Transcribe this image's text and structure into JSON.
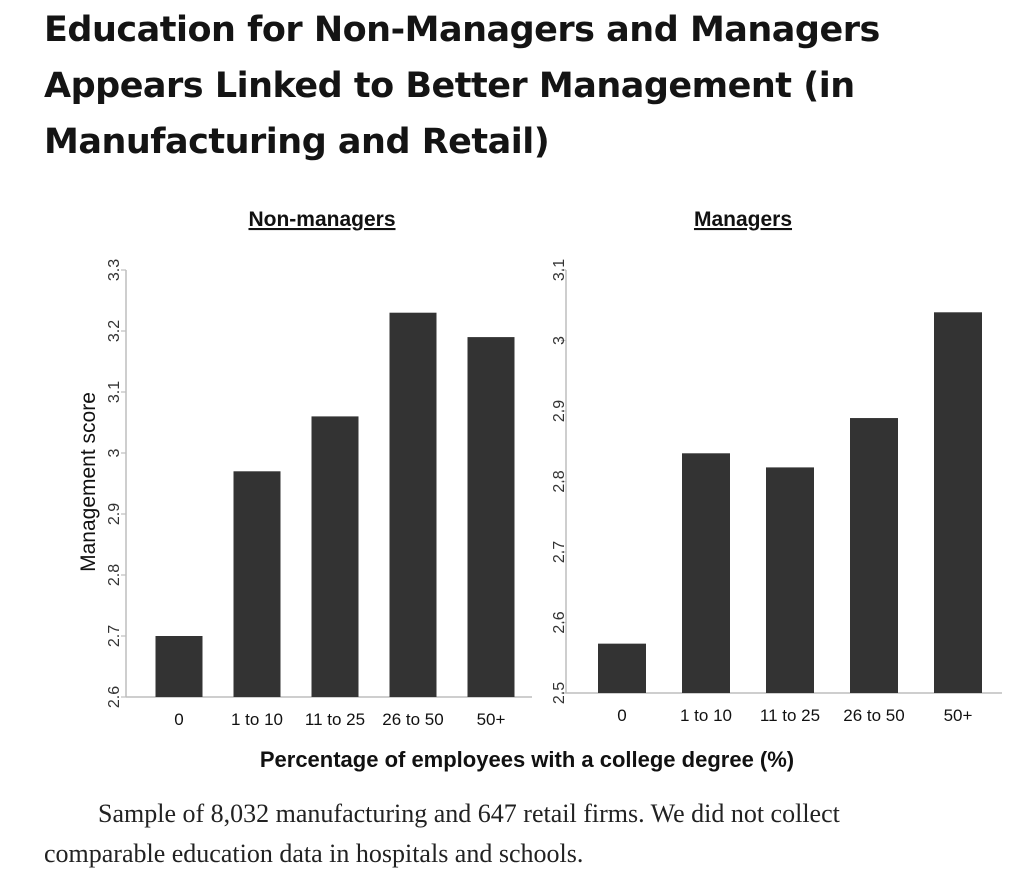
{
  "headline": {
    "line1": "Education for Non-Managers and Managers",
    "line2": "Appears Linked to Better Management (in",
    "line3": "Manufacturing and Retail)"
  },
  "chart_data": [
    {
      "type": "bar",
      "title": "Non-managers",
      "ylabel": "Management score",
      "xlabel": "Percentage of employees with a college degree (%)",
      "categories": [
        "0",
        "1 to 10",
        "11 to 25",
        "26 to 50",
        "50+"
      ],
      "values": [
        2.7,
        2.97,
        3.06,
        3.23,
        3.19
      ],
      "ylim": [
        2.6,
        3.3
      ],
      "yticks": [
        "2.6",
        "2.7",
        "2.8",
        "2.9",
        "3",
        "3.1",
        "3.2",
        "3.3"
      ],
      "bar_color": "#333333",
      "grid": false
    },
    {
      "type": "bar",
      "title": "Managers",
      "ylabel": "",
      "xlabel": "Percentage of employees with a college degree (%)",
      "categories": [
        "0",
        "1 to 10",
        "11 to 25",
        "26 to 50",
        "50+"
      ],
      "values": [
        2.57,
        2.84,
        2.82,
        2.89,
        3.04
      ],
      "ylim": [
        2.5,
        3.1
      ],
      "yticks": [
        "2.5",
        "2.6",
        "2.7",
        "2.8",
        "2.9",
        "3",
        "3.1"
      ],
      "bar_color": "#333333",
      "grid": false
    }
  ],
  "shared_xlabel": "Percentage of employees with a college degree (%)",
  "footnote": {
    "line1": "Sample of 8,032 manufacturing and 647 retail firms. We did not collect",
    "line2": "comparable education data in hospitals and schools."
  }
}
